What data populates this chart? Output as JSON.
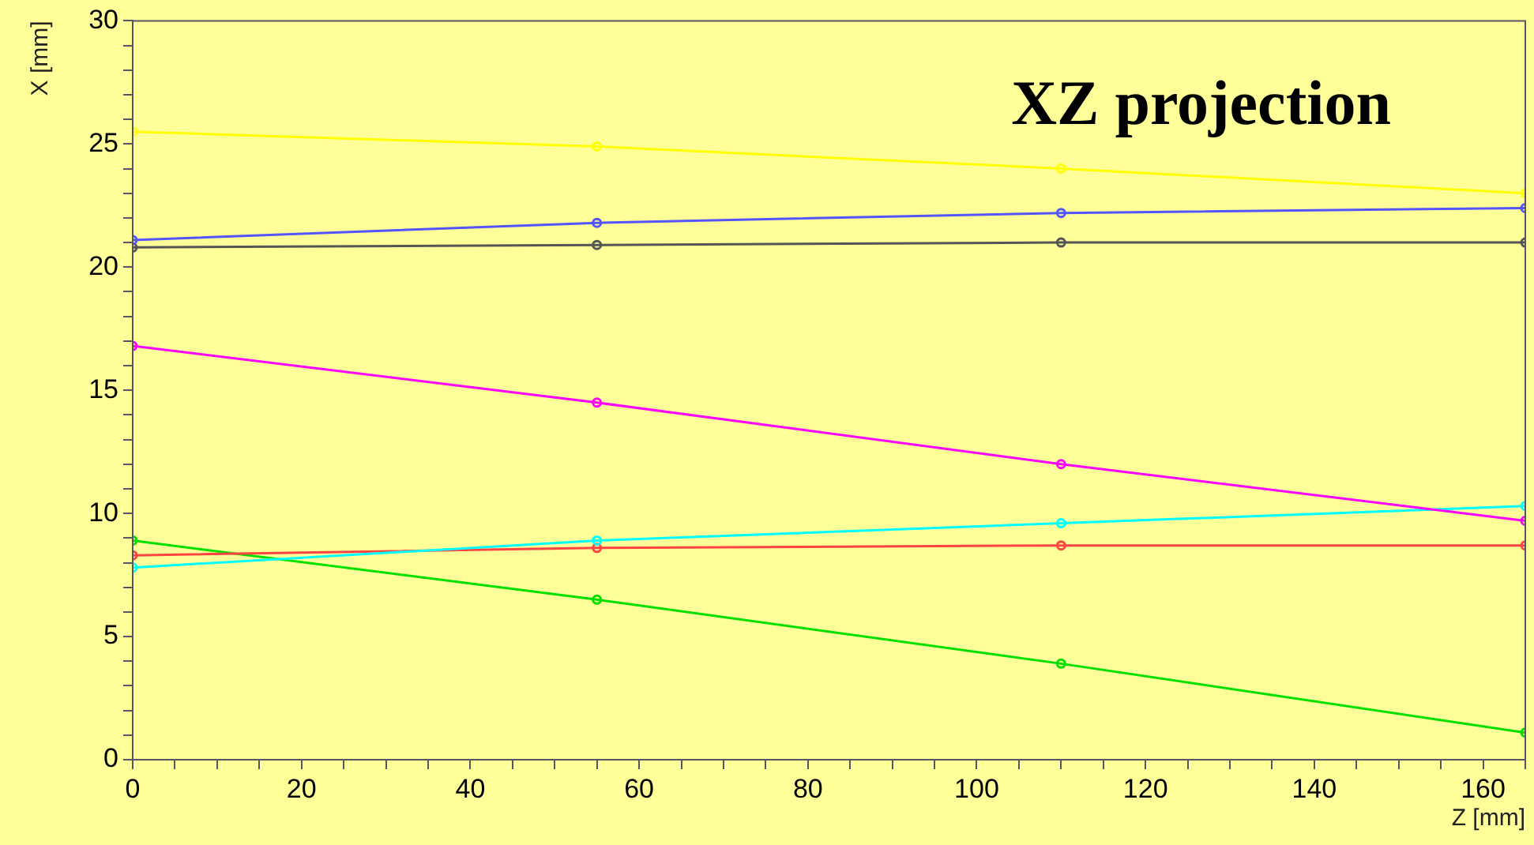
{
  "chart_data": {
    "type": "line",
    "title": "XZ projection",
    "xlabel": "Z [mm]",
    "ylabel": "X [mm]",
    "x": [
      0,
      55,
      110,
      165
    ],
    "series": [
      {
        "color": "#ffff00",
        "values": [
          25.5,
          24.9,
          24.0,
          23.0
        ]
      },
      {
        "color": "#5555ff",
        "values": [
          21.1,
          21.8,
          22.2,
          22.4
        ]
      },
      {
        "color": "#555555",
        "values": [
          20.8,
          20.9,
          21.0,
          21.0
        ]
      },
      {
        "color": "#ff00ff",
        "values": [
          16.8,
          14.5,
          12.0,
          9.7
        ]
      },
      {
        "color": "#00ffff",
        "values": [
          7.8,
          8.9,
          9.6,
          10.3
        ]
      },
      {
        "color": "#ff4444",
        "values": [
          8.3,
          8.6,
          8.7,
          8.7
        ]
      },
      {
        "color": "#00e000",
        "values": [
          8.9,
          6.5,
          3.9,
          1.1
        ]
      }
    ],
    "xlim": [
      0,
      165
    ],
    "xticks": [
      0,
      {
        "value": 5,
        "label": null
      },
      {
        "value": 10,
        "label": null
      },
      {
        "value": 15,
        "label": null
      },
      20,
      {
        "value": 25,
        "label": null
      },
      {
        "value": 30,
        "label": null
      },
      {
        "value": 35,
        "label": null
      },
      40,
      {
        "value": 45,
        "label": null
      },
      {
        "value": 50,
        "label": null
      },
      {
        "value": 55,
        "label": null
      },
      60,
      {
        "value": 65,
        "label": null
      },
      {
        "value": 70,
        "label": null
      },
      {
        "value": 75,
        "label": null
      },
      80,
      {
        "value": 85,
        "label": null
      },
      {
        "value": 90,
        "label": null
      },
      {
        "value": 95,
        "label": null
      },
      100,
      {
        "value": 105,
        "label": null
      },
      {
        "value": 110,
        "label": null
      },
      {
        "value": 115,
        "label": null
      },
      120,
      {
        "value": 125,
        "label": null
      },
      {
        "value": 130,
        "label": null
      },
      {
        "value": 135,
        "label": null
      },
      140,
      {
        "value": 145,
        "label": null
      },
      {
        "value": 150,
        "label": null
      },
      {
        "value": 155,
        "label": null
      },
      160,
      {
        "value": 165,
        "label": null
      }
    ],
    "ylim": [
      0,
      30
    ],
    "yticks": [
      0,
      {
        "value": 1,
        "label": null
      },
      {
        "value": 2,
        "label": null
      },
      {
        "value": 3,
        "label": null
      },
      {
        "value": 4,
        "label": null
      },
      5,
      {
        "value": 6,
        "label": null
      },
      {
        "value": 7,
        "label": null
      },
      {
        "value": 8,
        "label": null
      },
      {
        "value": 9,
        "label": null
      },
      10,
      {
        "value": 11,
        "label": null
      },
      {
        "value": 12,
        "label": null
      },
      {
        "value": 13,
        "label": null
      },
      {
        "value": 14,
        "label": null
      },
      15,
      {
        "value": 16,
        "label": null
      },
      {
        "value": 17,
        "label": null
      },
      {
        "value": 18,
        "label": null
      },
      {
        "value": 19,
        "label": null
      },
      20,
      {
        "value": 21,
        "label": null
      },
      {
        "value": 22,
        "label": null
      },
      {
        "value": 23,
        "label": null
      },
      {
        "value": 24,
        "label": null
      },
      25,
      {
        "value": 26,
        "label": null
      },
      {
        "value": 27,
        "label": null
      },
      {
        "value": 28,
        "label": null
      },
      {
        "value": 29,
        "label": null
      },
      30
    ],
    "grid": false,
    "legend": false,
    "marker": "circle",
    "line_style": "solid"
  }
}
